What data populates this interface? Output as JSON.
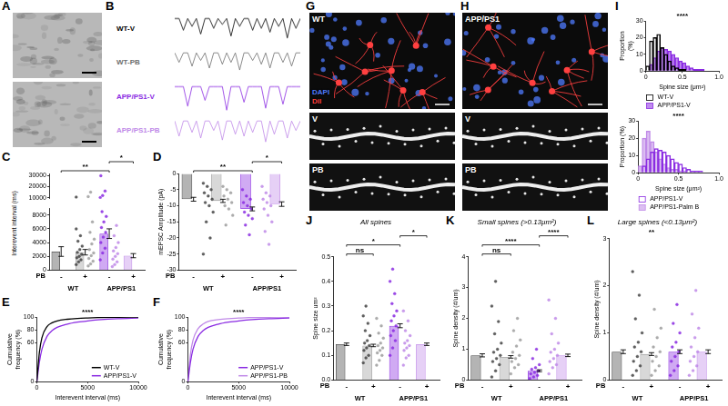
{
  "chart_data": [
    {
      "panel": "B",
      "type": "line",
      "tick_labels": false,
      "x": [
        0,
        1,
        2,
        3,
        4,
        5,
        6,
        7,
        8,
        9,
        10,
        11,
        12,
        13,
        14,
        15,
        16,
        17,
        18,
        19,
        20,
        21,
        22,
        23,
        24,
        25,
        26,
        27,
        28,
        29
      ],
      "xlim": [
        0,
        29
      ],
      "ylim": [
        -14,
        2
      ],
      "series": [
        {
          "name": "WT-V",
          "color": "#000000",
          "values": [
            0,
            0,
            -6,
            0,
            -4,
            0,
            -8,
            0,
            0,
            -5,
            0,
            -3,
            0,
            -9,
            0,
            -4,
            0,
            0,
            -6,
            0,
            -5,
            0,
            -7,
            0,
            -4,
            0,
            -10,
            0,
            -5,
            0
          ]
        },
        {
          "name": "WT-PB",
          "color": "#6e6e6e",
          "values": [
            0,
            -5,
            0,
            0,
            -7,
            0,
            -4,
            0,
            -8,
            0,
            0,
            -6,
            0,
            -5,
            0,
            -9,
            0,
            0,
            -4,
            0,
            -6,
            0,
            -8,
            0,
            0,
            -5,
            0,
            -7,
            0,
            0
          ]
        },
        {
          "name": "APP/PS1-V",
          "color": "#8a2be2",
          "values": [
            0,
            0,
            0,
            -10,
            0,
            0,
            0,
            -7,
            0,
            0,
            0,
            0,
            -12,
            0,
            0,
            0,
            -8,
            0,
            0,
            0,
            0,
            -11,
            0,
            0,
            0,
            -9,
            0,
            0,
            0,
            0
          ]
        },
        {
          "name": "APP/PS1-PB",
          "color": "#c08ae8",
          "values": [
            0,
            -8,
            0,
            0,
            -6,
            0,
            -9,
            0,
            0,
            -5,
            0,
            -10,
            0,
            0,
            -7,
            0,
            -8,
            0,
            -6,
            0,
            0,
            -11,
            0,
            -7,
            0,
            0,
            -9,
            0,
            -5,
            0
          ]
        }
      ]
    },
    {
      "panel": "C",
      "type": "bar",
      "ylabel": "Interevent interval (ms)",
      "categories": [
        "-",
        "+",
        "-",
        "+"
      ],
      "xlabel": "PB",
      "groups": [
        "WT",
        "APP/PS1"
      ],
      "colors": [
        "#444444",
        "#9e9e9e",
        "#8a2be2",
        "#c08ae8"
      ],
      "values": [
        2700,
        2600,
        5300,
        2100
      ],
      "errors": [
        700,
        400,
        700,
        300
      ],
      "points": [
        [
          800,
          1200,
          1500,
          1800,
          2000,
          2300,
          2600,
          3000,
          3500,
          4200,
          5000,
          6000
        ],
        [
          600,
          900,
          1300,
          1700,
          2100,
          2500,
          3000,
          3800,
          4500,
          5500,
          7000
        ],
        [
          1500,
          2500,
          3200,
          4000,
          4800,
          5500,
          6200,
          7000,
          7800,
          8500
        ],
        [
          500,
          800,
          1200,
          1600,
          2000,
          2400,
          2800,
          3300,
          4000,
          5000,
          6500
        ]
      ],
      "ylim": [
        0,
        9000
      ],
      "yticks": [
        0,
        2000,
        4000,
        6000,
        8000
      ],
      "grid": false
    },
    {
      "panel": "C",
      "type": "scatter",
      "tick_labels": "y",
      "categories": [
        "-",
        "+",
        "-",
        "+"
      ],
      "colors": [
        "#444444",
        "#9e9e9e",
        "#8a2be2",
        "#c08ae8"
      ],
      "points": [
        [
          10500
        ],
        [
          11000,
          15000
        ],
        [
          10000,
          12000,
          16000,
          30000
        ],
        []
      ],
      "ylim": [
        9000,
        32000
      ],
      "yticks": [
        10000,
        20000,
        30000
      ],
      "grid": false,
      "annotations": [
        {
          "text": "**",
          "from": 0,
          "to": 2
        },
        {
          "text": "*",
          "from": 2,
          "to": 3
        }
      ]
    },
    {
      "panel": "D",
      "type": "bar",
      "ylabel": "mEPSC Amplitude (pA)",
      "categories": [
        "-",
        "+",
        "-",
        "+"
      ],
      "xlabel": "PB",
      "groups": [
        "WT",
        "APP/PS1"
      ],
      "colors": [
        "#444444",
        "#9e9e9e",
        "#8a2be2",
        "#c08ae8"
      ],
      "values": [
        -8,
        -8.5,
        -11,
        -9.5
      ],
      "errors": [
        0.6,
        0.5,
        0.6,
        0.7
      ],
      "points": [
        [
          -3,
          -4,
          -5,
          -6,
          -7,
          -8,
          -9,
          -10,
          -12,
          -15,
          -20,
          -25
        ],
        [
          -4,
          -5,
          -6,
          -7,
          -8,
          -9,
          -10,
          -11,
          -13,
          -16
        ],
        [
          -5,
          -7,
          -8,
          -9,
          -10,
          -11,
          -12,
          -13,
          -14,
          -16,
          -19
        ],
        [
          -4,
          -6,
          -7,
          -8,
          -9,
          -10,
          -11,
          -13,
          -15,
          -18,
          -22
        ]
      ],
      "ylim": [
        -30,
        0
      ],
      "yticks": [
        0,
        -5,
        -10,
        -15,
        -20,
        -25,
        -30
      ],
      "grid": false,
      "annotations": [
        {
          "text": "**",
          "from": 0,
          "to": 2
        },
        {
          "text": "*",
          "from": 2,
          "to": 3
        }
      ]
    },
    {
      "panel": "E",
      "type": "line",
      "xlabel": "Interevent interval (ms)",
      "ylabel": "Cumulative frequency (%)",
      "x": [
        0,
        250,
        500,
        1000,
        1500,
        2000,
        3000,
        4000,
        5000,
        6000,
        8000,
        10000
      ],
      "xlim": [
        0,
        10000
      ],
      "xticks": [
        0,
        5000,
        10000
      ],
      "ylim": [
        0,
        100
      ],
      "yticks": [
        0,
        60,
        80,
        100
      ],
      "grid": false,
      "legend": "bottom right",
      "annotations": [
        {
          "text": "****"
        }
      ],
      "series": [
        {
          "name": "WT-V",
          "color": "#000000",
          "values": [
            0,
            45,
            68,
            85,
            91,
            94,
            96.5,
            97.8,
            98.5,
            99,
            99.5,
            99.8
          ]
        },
        {
          "name": "APP/PS1-V",
          "color": "#8a2be2",
          "values": [
            0,
            30,
            50,
            70,
            79,
            84,
            89,
            92,
            94,
            95.5,
            97.5,
            98.5
          ]
        }
      ]
    },
    {
      "panel": "F",
      "type": "line",
      "xlabel": "Interevent interval (ms)",
      "ylabel": "Cumulative frequency (%)",
      "x": [
        0,
        250,
        500,
        1000,
        1500,
        2000,
        3000,
        4000,
        5000,
        6000,
        8000,
        10000
      ],
      "xlim": [
        0,
        10000
      ],
      "xticks": [
        0,
        5000,
        10000
      ],
      "ylim": [
        0,
        100
      ],
      "yticks": [
        0,
        60,
        80,
        100
      ],
      "grid": false,
      "legend": "bottom right",
      "annotations": [
        {
          "text": "****"
        }
      ],
      "series": [
        {
          "name": "APP/PS1-V",
          "color": "#8a2be2",
          "values": [
            0,
            30,
            50,
            70,
            79,
            84,
            89,
            92,
            94,
            95.5,
            97.5,
            98.5
          ]
        },
        {
          "name": "APP/PS1-PB",
          "color": "#c08ae8",
          "values": [
            0,
            42,
            64,
            82,
            89,
            93,
            96,
            97.5,
            98.3,
            99,
            99.5,
            99.8
          ]
        }
      ]
    },
    {
      "panel": "I",
      "type": "histogram",
      "xlabel": "Spine size (μm²)",
      "ylabel": "Proportion (%)",
      "bins": [
        0,
        0.05,
        0.1,
        0.15,
        0.2,
        0.25,
        0.3,
        0.35,
        0.4,
        0.45,
        0.5,
        0.55,
        0.6,
        0.65,
        0.7,
        0.75,
        0.8,
        0.85,
        0.9,
        0.95,
        1
      ],
      "xlim": [
        0,
        1
      ],
      "xticks": [
        0,
        0.5,
        {
          "value": 1,
          "label": "1.0"
        }
      ],
      "ylim": [
        0,
        30
      ],
      "yticks": [
        0,
        10,
        20,
        30
      ],
      "grid": false,
      "legend": "bottom",
      "annotations": [
        {
          "text": "****"
        }
      ],
      "series": [
        {
          "name": "WT-V",
          "color": "#000000",
          "values": [
            3,
            18,
            20,
            22,
            14,
            10,
            6,
            3,
            2,
            1,
            1,
            0,
            0,
            0,
            0,
            0,
            0,
            0,
            0,
            0
          ]
        },
        {
          "name": "APP/PS1-V",
          "color": "#8a2be2",
          "values": [
            0,
            4,
            8,
            12,
            14,
            13,
            12,
            10,
            8,
            6,
            5,
            3,
            2,
            1,
            1,
            1,
            0,
            0,
            0,
            0
          ]
        }
      ]
    },
    {
      "panel": "I",
      "type": "histogram",
      "xlabel": "Spine size (μm²)",
      "ylabel": "Proportion (%)",
      "bins": [
        0,
        0.05,
        0.1,
        0.15,
        0.2,
        0.25,
        0.3,
        0.35,
        0.4,
        0.45,
        0.5,
        0.55,
        0.6,
        0.65,
        0.7,
        0.75,
        0.8,
        0.85,
        0.9,
        0.95,
        1
      ],
      "xlim": [
        0,
        1
      ],
      "xticks": [
        0,
        0.5,
        {
          "value": 1,
          "label": "1.0"
        }
      ],
      "ylim": [
        0,
        30
      ],
      "yticks": [
        0,
        10,
        20,
        30
      ],
      "grid": false,
      "legend": "bottom",
      "annotations": [
        {
          "text": "****"
        }
      ],
      "series": [
        {
          "name": "APP/PS1-V",
          "color": "#8a2be2",
          "values": [
            0,
            4,
            8,
            12,
            14,
            13,
            12,
            10,
            8,
            6,
            5,
            3,
            2,
            1,
            1,
            1,
            0,
            0,
            0,
            0
          ]
        },
        {
          "name": "APP/PS1-Palm B",
          "color": "#c08ae8",
          "values": [
            4,
            20,
            24,
            18,
            12,
            8,
            5,
            3,
            2,
            2,
            1,
            1,
            0,
            0,
            0,
            0,
            0,
            0,
            0,
            0
          ]
        }
      ]
    },
    {
      "panel": "J",
      "type": "bar",
      "title": "All spines",
      "ylabel": "Spine size um²",
      "categories": [
        "-",
        "+",
        "-",
        "+"
      ],
      "xlabel": "PB",
      "groups": [
        "WT",
        "APP/PS1"
      ],
      "colors": [
        "#444444",
        "#9e9e9e",
        "#8a2be2",
        "#c08ae8"
      ],
      "values": [
        0.145,
        0.14,
        0.22,
        0.145
      ],
      "errors": [
        0.005,
        0.005,
        0.008,
        0.005
      ],
      "points": [
        [
          0.07,
          0.09,
          0.1,
          0.12,
          0.13,
          0.14,
          0.15,
          0.16,
          0.18,
          0.2,
          0.23,
          0.26,
          0.3
        ],
        [
          0.06,
          0.08,
          0.1,
          0.11,
          0.12,
          0.13,
          0.14,
          0.15,
          0.17,
          0.19,
          0.22,
          0.25
        ],
        [
          0.1,
          0.13,
          0.16,
          0.18,
          0.2,
          0.22,
          0.24,
          0.26,
          0.28,
          0.31,
          0.35,
          0.4,
          0.45
        ],
        [
          0.06,
          0.09,
          0.1,
          0.12,
          0.13,
          0.14,
          0.15,
          0.16,
          0.18,
          0.2,
          0.24,
          0.28
        ]
      ],
      "ylim": [
        0,
        0.5
      ],
      "yticks": [
        {
          "value": 0,
          "label": "0.0"
        },
        0.1,
        0.2,
        0.3,
        0.4,
        0.5
      ],
      "grid": false,
      "annotations": [
        {
          "text": "ns",
          "from": 0,
          "to": 1
        },
        {
          "text": "*",
          "from": 0,
          "to": 2
        },
        {
          "text": "*",
          "from": 2,
          "to": 3
        }
      ]
    },
    {
      "panel": "K",
      "type": "bar",
      "title": "Small spines (>0.13μm²)",
      "ylabel": "Spine density (#/um)",
      "categories": [
        "-",
        "+",
        "-",
        "+"
      ],
      "xlabel": "PB",
      "groups": [
        "WT",
        "APP/PS1"
      ],
      "colors": [
        "#444444",
        "#9e9e9e",
        "#8a2be2",
        "#c08ae8"
      ],
      "values": [
        0.8,
        0.75,
        0.3,
        0.8
      ],
      "errors": [
        0.05,
        0.04,
        0.03,
        0.04
      ],
      "points": [
        [
          0.1,
          0.3,
          0.5,
          0.6,
          0.7,
          0.8,
          0.9,
          1.0,
          1.2,
          1.5,
          1.9,
          2.4,
          3.2
        ],
        [
          0.2,
          0.4,
          0.5,
          0.6,
          0.7,
          0.8,
          0.9,
          1.1,
          1.3,
          1.6,
          2.0
        ],
        [
          0.05,
          0.1,
          0.15,
          0.2,
          0.25,
          0.3,
          0.35,
          0.4,
          0.5,
          0.7,
          1.0
        ],
        [
          0.2,
          0.4,
          0.5,
          0.6,
          0.7,
          0.8,
          0.9,
          1.0,
          1.2,
          1.5,
          2.0,
          2.6
        ]
      ],
      "ylim": [
        0,
        4
      ],
      "yticks": [
        0,
        1,
        2,
        3,
        4
      ],
      "grid": false,
      "annotations": [
        {
          "text": "ns",
          "from": 0,
          "to": 1
        },
        {
          "text": "****",
          "from": 0,
          "to": 2
        },
        {
          "text": "****",
          "from": 2,
          "to": 3
        }
      ]
    },
    {
      "panel": "L",
      "type": "bar",
      "title": "Large spines (<0.13μm²)",
      "ylabel": "Spine density (#/um)",
      "categories": [
        "-",
        "+",
        "-",
        "+"
      ],
      "xlabel": "PB",
      "groups": [
        "WT",
        "APP/PS1"
      ],
      "colors": [
        "#444444",
        "#9e9e9e",
        "#8a2be2",
        "#c08ae8"
      ],
      "values": [
        0.6,
        0.55,
        0.6,
        0.6
      ],
      "errors": [
        0.04,
        0.03,
        0.04,
        0.04
      ],
      "points": [
        [
          0.1,
          0.2,
          0.3,
          0.4,
          0.5,
          0.6,
          0.7,
          0.8,
          1.0,
          1.3,
          1.8,
          2.3
        ],
        [
          0.1,
          0.2,
          0.3,
          0.4,
          0.5,
          0.6,
          0.7,
          0.9,
          1.1,
          1.5
        ],
        [
          0.1,
          0.2,
          0.3,
          0.4,
          0.5,
          0.6,
          0.7,
          0.8,
          1.0,
          1.2,
          1.6
        ],
        [
          0.1,
          0.2,
          0.3,
          0.4,
          0.5,
          0.6,
          0.7,
          0.9,
          1.1,
          1.4,
          1.9
        ]
      ],
      "ylim": [
        0,
        3
      ],
      "yticks": [
        0,
        1,
        2,
        3
      ],
      "grid": false,
      "annotations": [
        {
          "text": "**",
          "from": 1,
          "to": 1
        }
      ]
    }
  ],
  "images": [
    {
      "panel": "A"
    },
    {
      "panel": "G",
      "label": "WT",
      "stains": [
        "DAPI",
        "DiI"
      ],
      "rows": [
        "V",
        "PB"
      ]
    },
    {
      "panel": "H",
      "label": "APP/PS1",
      "rows": [
        "V",
        "PB"
      ]
    }
  ]
}
